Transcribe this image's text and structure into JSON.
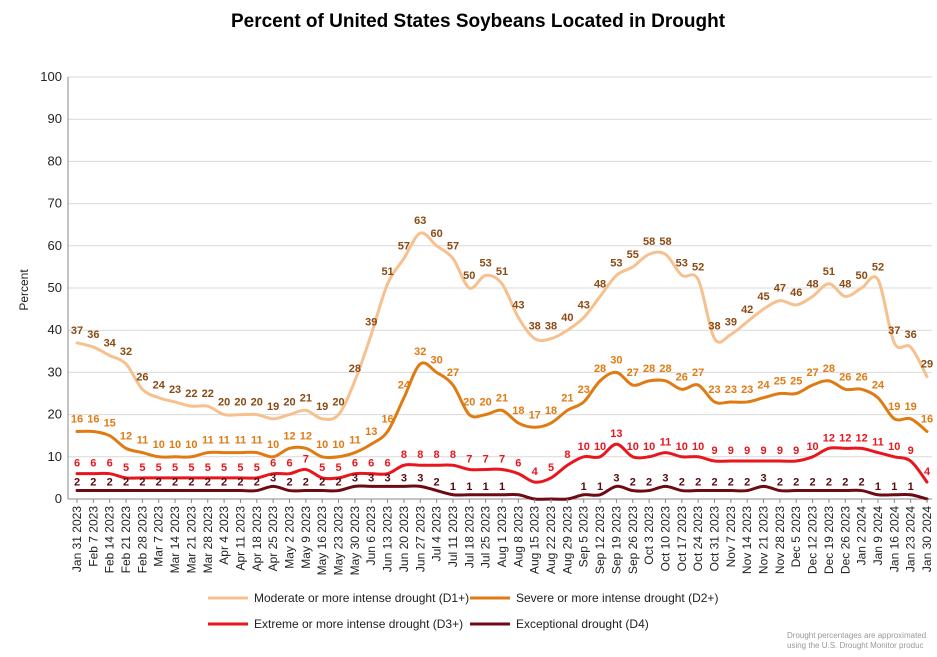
{
  "chart_data": {
    "type": "line",
    "title": "Percent of United States Soybeans Located in Drought",
    "ylabel": "Percent",
    "ylim": [
      0,
      100
    ],
    "yticks": [
      0,
      10,
      20,
      30,
      40,
      50,
      60,
      70,
      80,
      90,
      100
    ],
    "grid": true,
    "legend_position": "bottom",
    "x": [
      "Jan 31 2023",
      "Feb 7 2023",
      "Feb 14 2023",
      "Feb 21 2023",
      "Feb 28 2023",
      "Mar 7 2023",
      "Mar 14 2023",
      "Mar 21 2023",
      "Mar 28 2023",
      "Apr 4 2023",
      "Apr 11 2023",
      "Apr 18 2023",
      "Apr 25 2023",
      "May 2 2023",
      "May 9 2023",
      "May 16 2023",
      "May 23 2023",
      "May 30 2023",
      "Jun 6 2023",
      "Jun 13 2023",
      "Jun 20 2023",
      "Jun 27 2023",
      "Jul 4 2023",
      "Jul 11 2023",
      "Jul 18 2023",
      "Jul 25 2023",
      "Aug 1 2023",
      "Aug 8 2023",
      "Aug 15 2023",
      "Aug 22 2023",
      "Aug 29 2023",
      "Sep 5 2023",
      "Sep 12 2023",
      "Sep 19 2023",
      "Sep 26 2023",
      "Oct 3 2023",
      "Oct 10 2023",
      "Oct 17 2023",
      "Oct 24 2023",
      "Oct 31 2023",
      "Nov 7 2023",
      "Nov 14 2023",
      "Nov 21 2023",
      "Nov 28 2023",
      "Dec 5 2023",
      "Dec 12 2023",
      "Dec 19 2023",
      "Dec 26 2023",
      "Jan 2 2024",
      "Jan 9 2024",
      "Jan 16 2024",
      "Jan 23 2024",
      "Jan 30 2024"
    ],
    "series": [
      {
        "name": "Moderate or more intense drought (D1+)",
        "color": "#f7c08f",
        "labelColor": "#8a4a12",
        "labelDy": -9,
        "values": [
          37,
          36,
          34,
          32,
          26,
          24,
          23,
          22,
          22,
          20,
          20,
          20,
          19,
          20,
          21,
          19,
          20,
          28,
          39,
          51,
          57,
          63,
          60,
          57,
          50,
          53,
          51,
          43,
          38,
          38,
          40,
          43,
          48,
          53,
          55,
          58,
          58,
          53,
          52,
          38,
          39,
          42,
          45,
          47,
          46,
          48,
          51,
          48,
          50,
          52,
          37,
          36,
          29
        ]
      },
      {
        "name": "Severe or more intense drought (D2+)",
        "color": "#e07b14",
        "labelColor": "#e07b14",
        "labelDy": -9,
        "values": [
          16,
          16,
          15,
          12,
          11,
          10,
          10,
          10,
          11,
          11,
          11,
          11,
          10,
          12,
          12,
          10,
          10,
          11,
          13,
          16,
          24,
          32,
          30,
          27,
          20,
          20,
          21,
          18,
          17,
          18,
          21,
          23,
          28,
          30,
          27,
          28,
          28,
          26,
          27,
          23,
          23,
          23,
          24,
          25,
          25,
          27,
          28,
          26,
          26,
          24,
          19,
          19,
          16
        ]
      },
      {
        "name": "Extreme or more intense drought (D3+)",
        "color": "#e8161d",
        "labelColor": "#e8161d",
        "labelDy": -7,
        "values": [
          6,
          6,
          6,
          5,
          5,
          5,
          5,
          5,
          5,
          5,
          5,
          5,
          6,
          6,
          7,
          5,
          5,
          6,
          6,
          6,
          8,
          8,
          8,
          8,
          7,
          7,
          7,
          6,
          4,
          5,
          8,
          10,
          10,
          13,
          10,
          10,
          11,
          10,
          10,
          9,
          9,
          9,
          9,
          9,
          9,
          10,
          12,
          12,
          12,
          11,
          10,
          9,
          4
        ]
      },
      {
        "name": "Exceptional drought (D4)",
        "color": "#6e0a12",
        "labelColor": "#5a0a0f",
        "labelDy": -5,
        "values": [
          2,
          2,
          2,
          2,
          2,
          2,
          2,
          2,
          2,
          2,
          2,
          2,
          3,
          2,
          2,
          2,
          2,
          3,
          3,
          3,
          3,
          3,
          2,
          1,
          1,
          1,
          1,
          1,
          0,
          0,
          0,
          1,
          1,
          3,
          2,
          2,
          3,
          2,
          2,
          2,
          2,
          2,
          3,
          2,
          2,
          2,
          2,
          2,
          2,
          1,
          1,
          1,
          0
        ]
      }
    ],
    "d4_label_indices": [
      0,
      1,
      2,
      3,
      4,
      5,
      6,
      7,
      8,
      9,
      10,
      11,
      12,
      13,
      14,
      15,
      16,
      17,
      18,
      19,
      20,
      21,
      22,
      23,
      24,
      25,
      26,
      31,
      32,
      33,
      34,
      35,
      36,
      37,
      38,
      39,
      40,
      41,
      42,
      43,
      44,
      45,
      46,
      47,
      48,
      49,
      50,
      51
    ]
  },
  "note": {
    "line1": "Drought percentages are approximated",
    "line2": "using the U.S. Drought Monitor produc"
  }
}
